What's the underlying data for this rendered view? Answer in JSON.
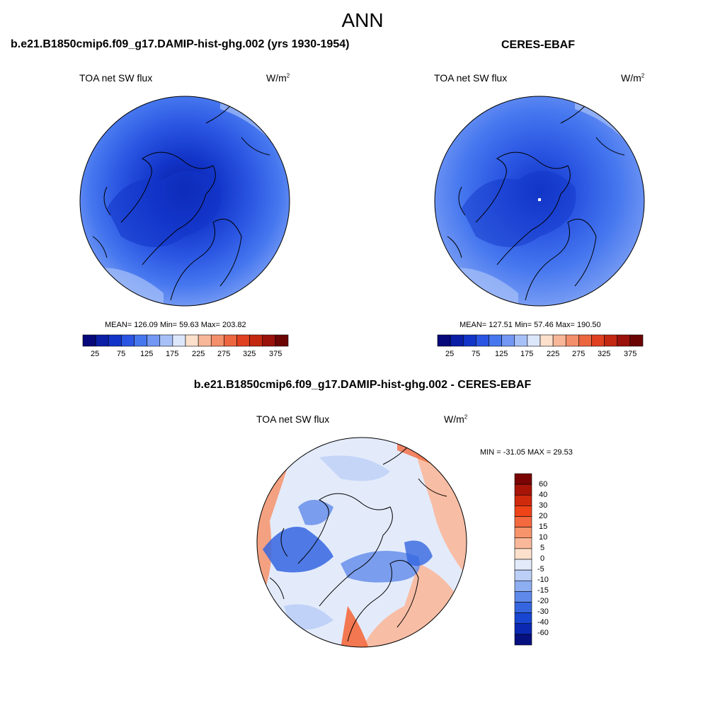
{
  "figure": {
    "title": "ANN"
  },
  "panels": [
    {
      "case": "b.e21.B1850cmip6.f09_g17.DAMIP-hist-ghg.002 (yrs 1930-1954)",
      "variable": "TOA net SW flux",
      "units_base": "W/m",
      "units_exp": "2",
      "stats": "MEAN= 126.09  Min=  59.63  Max= 203.82",
      "colorbar_ticks": [
        "25",
        "75",
        "125",
        "175",
        "225",
        "275",
        "325",
        "375"
      ]
    },
    {
      "case": "CERES-EBAF",
      "variable": "TOA net SW flux",
      "units_base": "W/m",
      "units_exp": "2",
      "stats": "MEAN= 127.51  Min=  57.46  Max= 190.50",
      "colorbar_ticks": [
        "25",
        "75",
        "125",
        "175",
        "225",
        "275",
        "325",
        "375"
      ]
    },
    {
      "case": "b.e21.B1850cmip6.f09_g17.DAMIP-hist-ghg.002 - CERES-EBAF",
      "variable": "TOA net SW flux",
      "units_base": "W/m",
      "units_exp": "2",
      "stats": "MIN = -31.05 MAX =  29.53",
      "colorbar_ticks": [
        "60",
        "40",
        "30",
        "20",
        "15",
        "10",
        "5",
        "0",
        "-5",
        "-10",
        "-15",
        "-20",
        "-30",
        "-40",
        "-60"
      ]
    }
  ],
  "colors": {
    "seq": [
      "#07087a",
      "#0a1ea6",
      "#1235c8",
      "#2a55e2",
      "#4677ef",
      "#7298f3",
      "#a7c1f8",
      "#dde7fc",
      "#fde0cb",
      "#f8b799",
      "#f38f6a",
      "#ec6640",
      "#e04020",
      "#c42810",
      "#9a120a",
      "#6b0504"
    ],
    "div": [
      "#7a0404",
      "#a81408",
      "#d02a0c",
      "#ef4418",
      "#f46a3e",
      "#f7946b",
      "#fab89b",
      "#fce0cc",
      "#e3ebfb",
      "#bccff7",
      "#8eaef2",
      "#5f89ea",
      "#3566e0",
      "#1846d0",
      "#0a28b2",
      "#06107e"
    ]
  }
}
